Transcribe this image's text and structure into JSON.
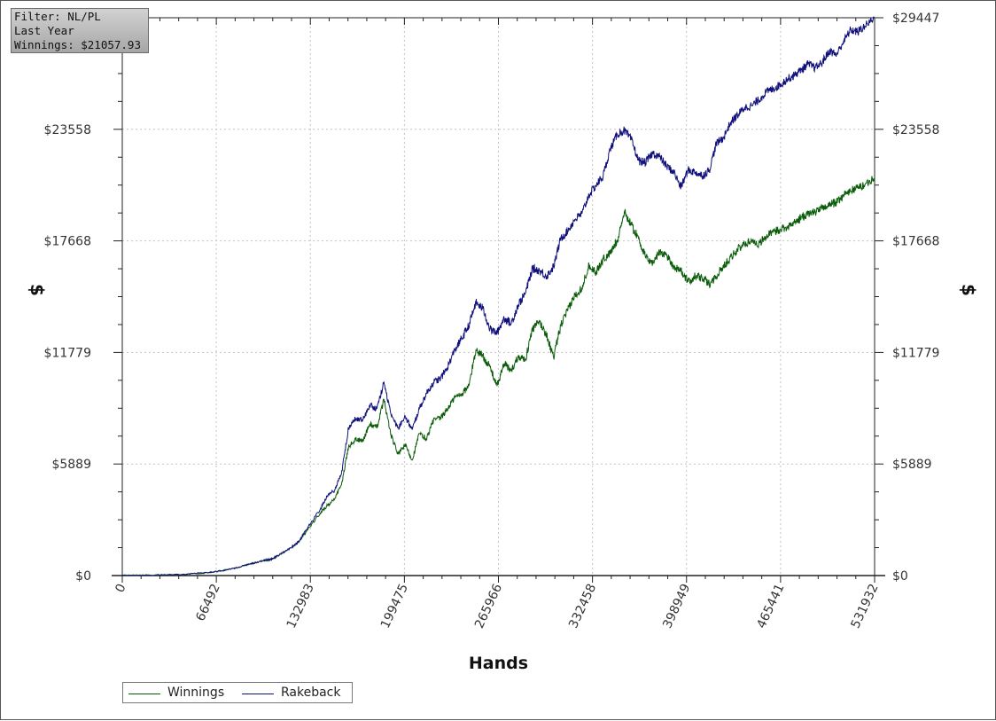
{
  "info_box": {
    "filter": "Filter: NL/PL",
    "period": "Last Year",
    "winnings": "Winnings: $21057.93"
  },
  "legend": [
    {
      "label": "Winnings",
      "color": "#0a5c0a"
    },
    {
      "label": "Rakeback",
      "color": "#10107a"
    }
  ],
  "chart_data": {
    "type": "line",
    "xlabel": "Hands",
    "ylabel": "$",
    "xlim": [
      0,
      531932
    ],
    "ylim": [
      0,
      29447
    ],
    "x_ticks": [
      0,
      66492,
      132983,
      199475,
      265966,
      332458,
      398949,
      465441,
      531932
    ],
    "y_ticks": [
      0,
      5889,
      11779,
      17668,
      23558,
      29447
    ],
    "y_tick_labels": [
      "$0",
      "$5889",
      "$11779",
      "$17668",
      "$23558",
      "$29447"
    ],
    "grid": true,
    "legend_position": "bottom-left",
    "x": [
      0,
      20000,
      40000,
      60000,
      70000,
      80000,
      90000,
      100000,
      105000,
      110000,
      120000,
      125000,
      130000,
      140000,
      145000,
      150000,
      155000,
      160000,
      165000,
      170000,
      175000,
      180000,
      185000,
      190000,
      195000,
      200000,
      205000,
      210000,
      215000,
      220000,
      225000,
      230000,
      235000,
      240000,
      245000,
      250000,
      255000,
      260000,
      265000,
      270000,
      275000,
      280000,
      285000,
      290000,
      295000,
      300000,
      305000,
      310000,
      315000,
      320000,
      325000,
      330000,
      335000,
      340000,
      345000,
      350000,
      355000,
      360000,
      365000,
      370000,
      375000,
      380000,
      385000,
      390000,
      395000,
      400000,
      405000,
      410000,
      415000,
      420000,
      425000,
      430000,
      435000,
      440000,
      445000,
      450000,
      455000,
      460000,
      465000,
      470000,
      475000,
      480000,
      485000,
      490000,
      495000,
      500000,
      505000,
      510000,
      515000,
      520000,
      525000,
      531932
    ],
    "series": [
      {
        "name": "Winnings",
        "color": "#0a5c0a",
        "values": [
          0,
          20,
          50,
          150,
          250,
          400,
          600,
          800,
          850,
          1050,
          1500,
          1800,
          2300,
          3300,
          3700,
          4000,
          4800,
          6800,
          7200,
          7100,
          8000,
          7800,
          9300,
          7400,
          6400,
          6900,
          6100,
          7500,
          7200,
          8200,
          8300,
          8800,
          9400,
          9600,
          10000,
          11900,
          11600,
          11000,
          10000,
          11200,
          10800,
          11600,
          11400,
          13000,
          13400,
          12700,
          11500,
          13200,
          14000,
          14800,
          15200,
          16400,
          16000,
          16700,
          17000,
          17700,
          19200,
          18500,
          17800,
          16800,
          16500,
          17100,
          16900,
          16300,
          16100,
          15500,
          15800,
          15700,
          15400,
          15800,
          16300,
          16800,
          17200,
          17500,
          17700,
          17500,
          17900,
          18100,
          18300,
          18400,
          18600,
          18900,
          19100,
          19200,
          19400,
          19600,
          19700,
          20100,
          20300,
          20500,
          20600,
          21057
        ]
      },
      {
        "name": "Rakeback",
        "color": "#10107a",
        "values": [
          0,
          20,
          50,
          150,
          250,
          400,
          600,
          800,
          850,
          1050,
          1500,
          1800,
          2400,
          3500,
          4200,
          4500,
          5400,
          7800,
          8300,
          8200,
          9000,
          8800,
          10200,
          8500,
          7800,
          8400,
          7700,
          8800,
          9600,
          10200,
          10400,
          11000,
          11900,
          12500,
          13200,
          14400,
          14100,
          13000,
          12800,
          13600,
          13300,
          14300,
          14900,
          16200,
          16100,
          15800,
          16300,
          17800,
          18200,
          18800,
          19100,
          20100,
          20600,
          21100,
          22500,
          23300,
          23500,
          23000,
          21900,
          21800,
          22300,
          22100,
          21600,
          21300,
          20500,
          21400,
          21300,
          21100,
          21400,
          22800,
          23100,
          23900,
          24300,
          24700,
          24800,
          25100,
          25500,
          25700,
          25900,
          26200,
          26400,
          26700,
          27000,
          26800,
          27100,
          27700,
          27500,
          28200,
          28800,
          28700,
          29000,
          29447
        ]
      }
    ]
  }
}
